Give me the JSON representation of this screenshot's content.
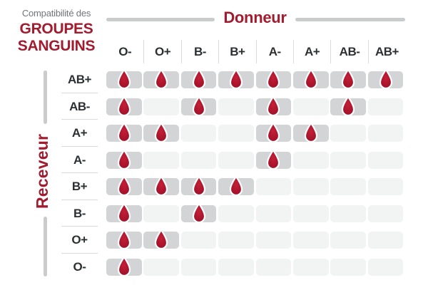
{
  "title": {
    "subtitle": "Compatibilité des",
    "line1": "GROUPES",
    "line2": "SANGUINS"
  },
  "donor": {
    "label": "Donneur"
  },
  "receiver": {
    "label": "Receveur"
  },
  "icons": {
    "compatible_marker": "blood-drop-icon"
  },
  "colors": {
    "accent_red": "#a21b2e",
    "drop_red_center": "#c32038",
    "drop_red_edge": "#9c0e26",
    "cell_compatible": "#d2d4d5",
    "cell_empty": "#f2f3f3",
    "label_dark": "#2d3033",
    "subtitle_gray": "#70757a",
    "divider_gray": "#c9cbcc",
    "separator_gray": "#d9dbdc"
  },
  "chart_data": {
    "type": "heatmap",
    "title": "Compatibilité des GROUPES SANGUINS",
    "xlabel": "Donneur",
    "ylabel": "Receveur",
    "columns": [
      "O-",
      "O+",
      "B-",
      "B+",
      "A-",
      "A+",
      "AB-",
      "AB+"
    ],
    "rows": [
      "AB+",
      "AB-",
      "A+",
      "A-",
      "B+",
      "B-",
      "O+",
      "O-"
    ],
    "matrix": [
      [
        1,
        1,
        1,
        1,
        1,
        1,
        1,
        1
      ],
      [
        1,
        0,
        1,
        0,
        1,
        0,
        1,
        0
      ],
      [
        1,
        1,
        0,
        0,
        1,
        1,
        0,
        0
      ],
      [
        1,
        0,
        0,
        0,
        1,
        0,
        0,
        0
      ],
      [
        1,
        1,
        1,
        1,
        0,
        0,
        0,
        0
      ],
      [
        1,
        0,
        1,
        0,
        0,
        0,
        0,
        0
      ],
      [
        1,
        1,
        0,
        0,
        0,
        0,
        0,
        0
      ],
      [
        1,
        0,
        0,
        0,
        0,
        0,
        0,
        0
      ]
    ],
    "value_meaning": {
      "1": "compatible — blood drop shown",
      "0": "not compatible — empty cell"
    },
    "legend_position": "none",
    "grid": "off"
  }
}
